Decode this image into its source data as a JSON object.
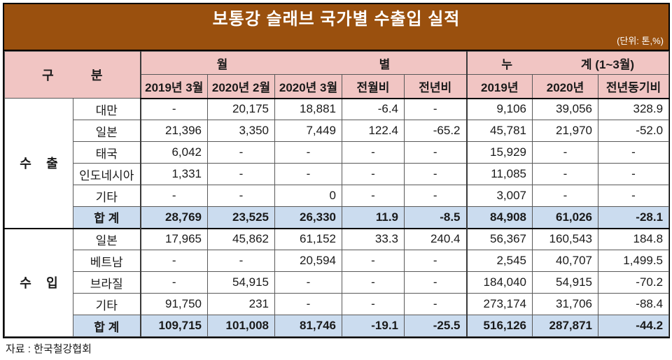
{
  "source": "자료 : 한국철강협회",
  "chart_data": {
    "type": "table",
    "title": "보통강 슬래브 국가별 수출입 실적",
    "unit_label": "(단위: 톤,%)",
    "colors": {
      "title_bg": "#9a500e",
      "header_bg": "#f1c5c3",
      "sum_bg": "#cbdcef"
    },
    "header": {
      "gubun": [
        "구",
        "분"
      ],
      "monthly": [
        "월",
        "별"
      ],
      "cumulative": [
        "누",
        "계 (1~3월)"
      ]
    },
    "columns": [
      "2019년 3월",
      "2020년 2월",
      "2020년 3월",
      "전월비",
      "전년비",
      "2019년",
      "2020년",
      "전년동기비"
    ],
    "sections": [
      {
        "label": [
          "수",
          "출"
        ],
        "rows": [
          {
            "name": "대만",
            "values": [
              "-",
              "20,175",
              "18,881",
              "-6.4",
              "-",
              "9,106",
              "39,056",
              "328.9"
            ]
          },
          {
            "name": "일본",
            "values": [
              "21,396",
              "3,350",
              "7,449",
              "122.4",
              "-65.2",
              "45,781",
              "21,970",
              "-52.0"
            ]
          },
          {
            "name": "태국",
            "values": [
              "6,042",
              "-",
              "-",
              "-",
              "-",
              "15,929",
              "-",
              "-"
            ]
          },
          {
            "name": "인도네시아",
            "values": [
              "1,331",
              "-",
              "-",
              "-",
              "-",
              "11,085",
              "-",
              "-"
            ]
          },
          {
            "name": "기타",
            "values": [
              "-",
              "-",
              "0",
              "-",
              "-",
              "3,007",
              "-",
              "-"
            ]
          }
        ],
        "sum": {
          "name": "합 계",
          "values": [
            "28,769",
            "23,525",
            "26,330",
            "11.9",
            "-8.5",
            "84,908",
            "61,026",
            "-28.1"
          ]
        }
      },
      {
        "label": [
          "수",
          "입"
        ],
        "rows": [
          {
            "name": "일본",
            "values": [
              "17,965",
              "45,862",
              "61,152",
              "33.3",
              "240.4",
              "56,367",
              "160,543",
              "184.8"
            ]
          },
          {
            "name": "베트남",
            "values": [
              "-",
              "-",
              "20,594",
              "-",
              "-",
              "2,545",
              "40,707",
              "1,499.5"
            ]
          },
          {
            "name": "브라질",
            "values": [
              "-",
              "54,915",
              "-",
              "-",
              "-",
              "184,040",
              "54,915",
              "-70.2"
            ]
          },
          {
            "name": "기타",
            "values": [
              "91,750",
              "231",
              "-",
              "-",
              "-",
              "273,174",
              "31,706",
              "-88.4"
            ]
          }
        ],
        "sum": {
          "name": "합 계",
          "values": [
            "109,715",
            "101,008",
            "81,746",
            "-19.1",
            "-25.5",
            "516,126",
            "287,871",
            "-44.2"
          ]
        }
      }
    ]
  }
}
